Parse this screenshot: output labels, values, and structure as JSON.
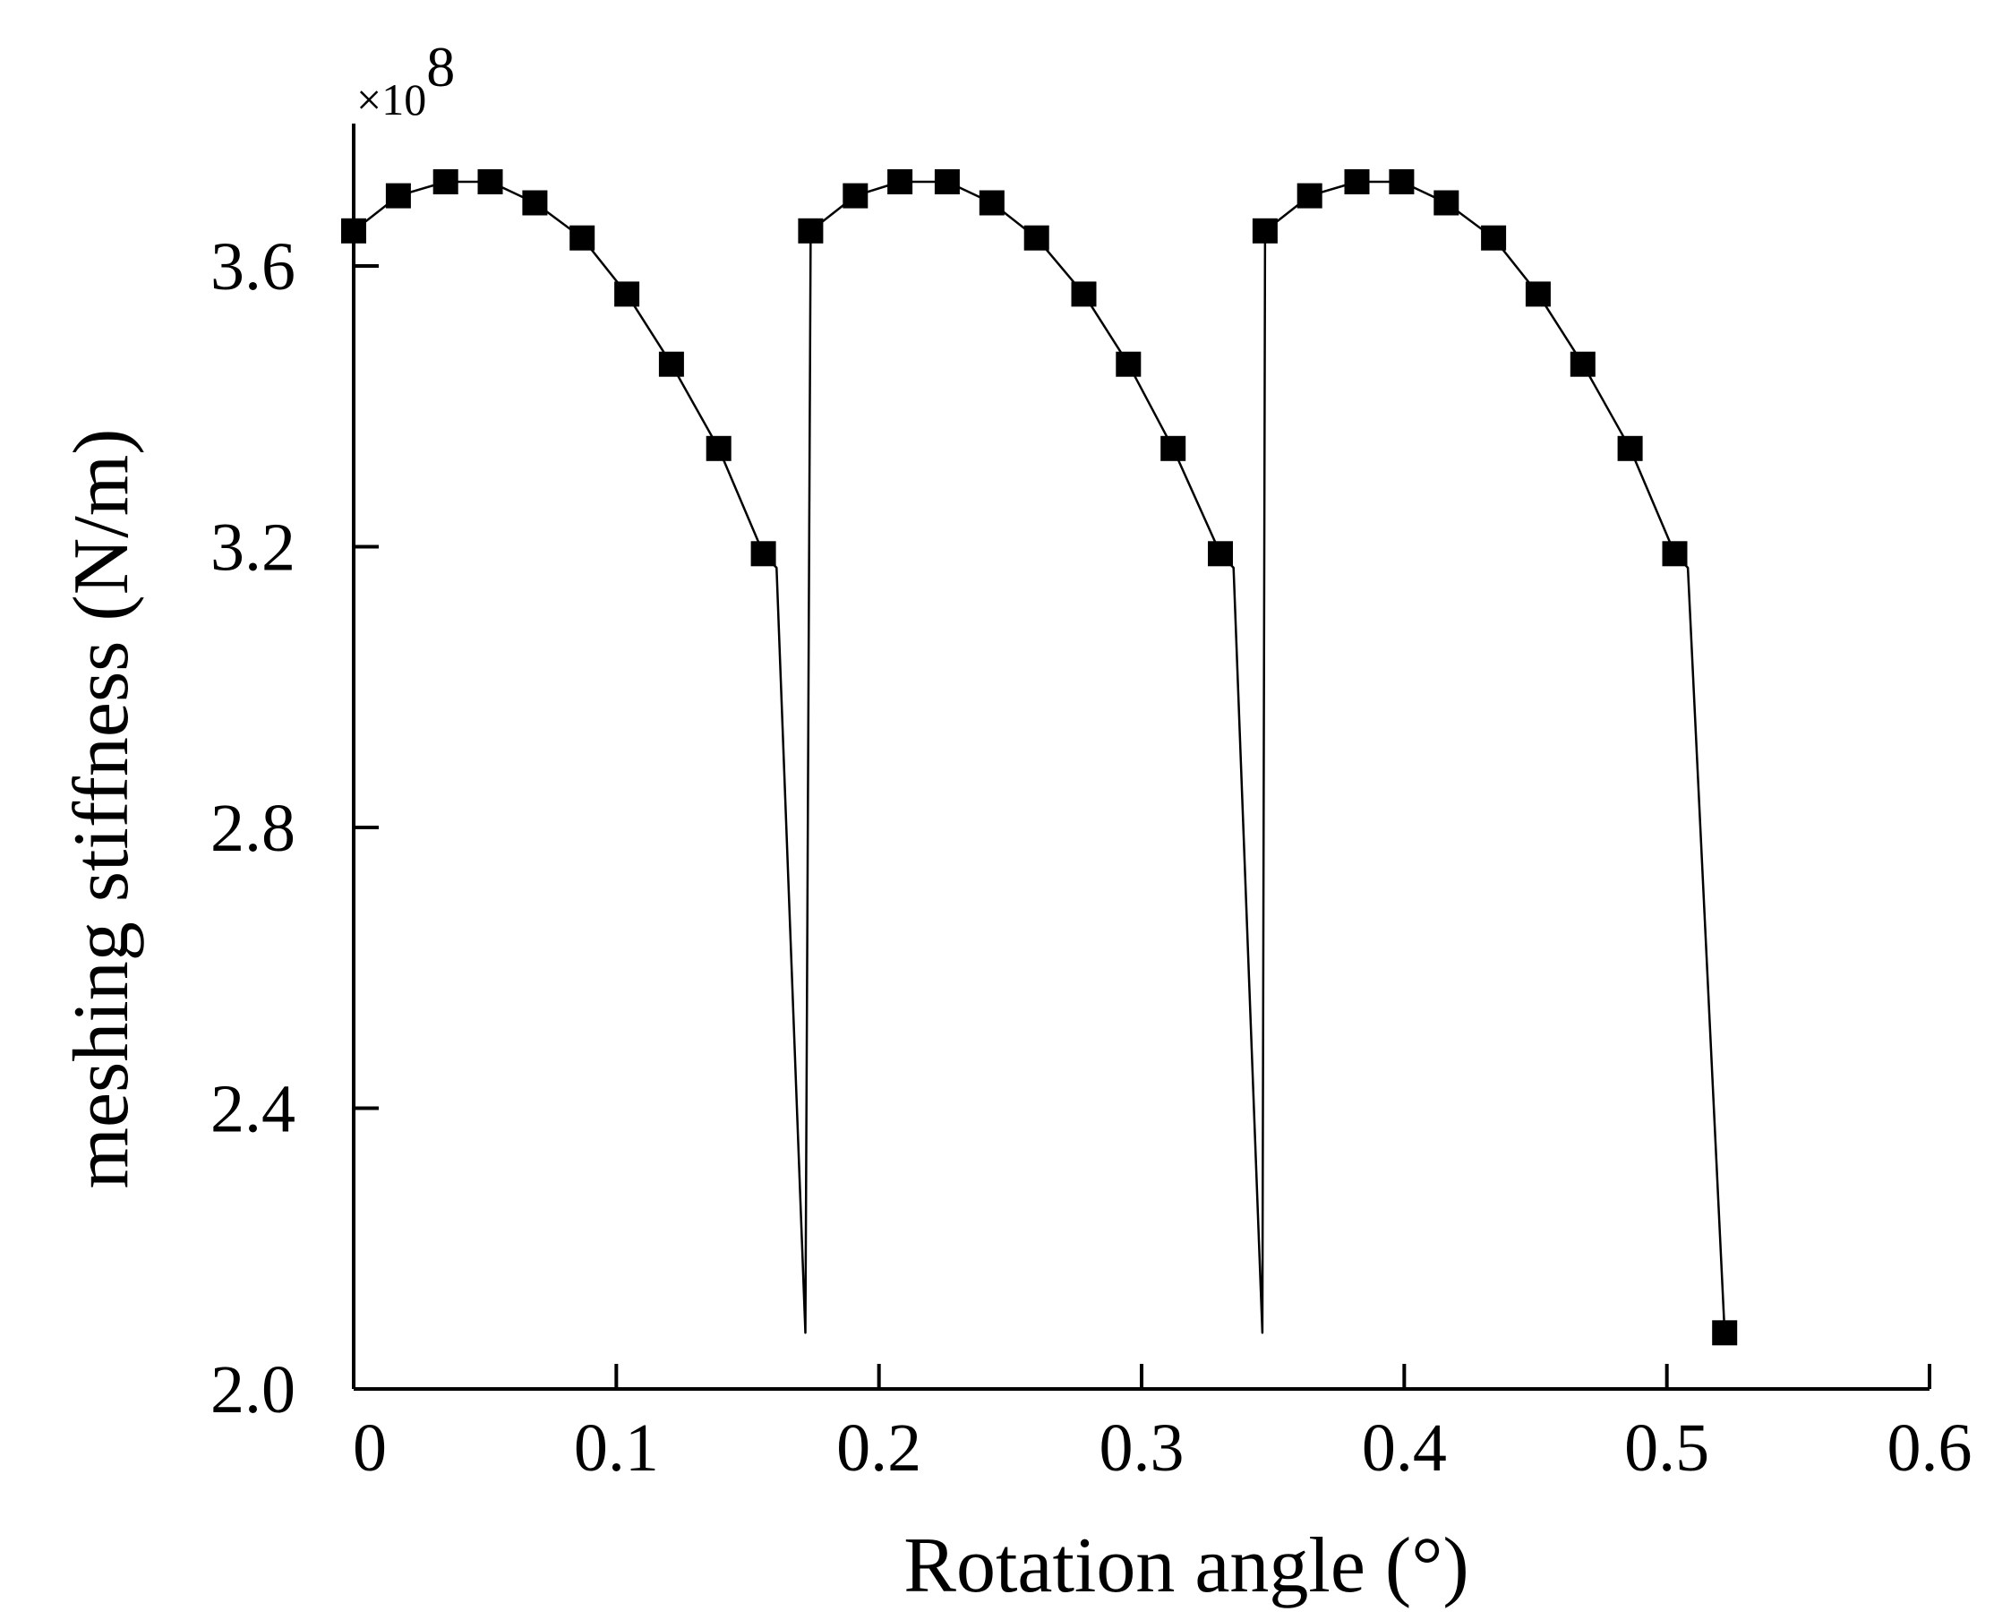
{
  "chart_data": {
    "type": "line",
    "title": "",
    "xlabel": "Rotation angle (°)",
    "ylabel": "meshing stiffness (N/m)",
    "y_multiplier": {
      "base": "×10",
      "exponent": "8"
    },
    "xlim": [
      0,
      0.6
    ],
    "ylim": [
      2.0,
      3.8
    ],
    "x_ticks": [
      0,
      0.1,
      0.2,
      0.3,
      0.4,
      0.5,
      0.6
    ],
    "x_tick_labels": [
      "0",
      "0.1",
      "0.2",
      "0.3",
      "0.4",
      "0.5",
      "0.6"
    ],
    "y_ticks": [
      2.0,
      2.4,
      2.8,
      3.2,
      3.6
    ],
    "y_tick_labels": [
      "2.0",
      "2.4",
      "2.8",
      "3.2",
      "3.6"
    ],
    "grid": false,
    "legend": "none",
    "colors": {
      "line": "#000000",
      "marker": "#000000"
    },
    "series": [
      {
        "marker": "square",
        "x": [
          0.0,
          0.017,
          0.035,
          0.052,
          0.069,
          0.087,
          0.104,
          0.121,
          0.139,
          0.156,
          0.161,
          0.172,
          0.174,
          0.191,
          0.208,
          0.226,
          0.243,
          0.26,
          0.278,
          0.295,
          0.312,
          0.33,
          0.335,
          0.346,
          0.347,
          0.364,
          0.382,
          0.399,
          0.416,
          0.434,
          0.451,
          0.468,
          0.486,
          0.503,
          0.508,
          0.522
        ],
        "y": [
          3.65,
          3.7,
          3.72,
          3.72,
          3.69,
          3.64,
          3.56,
          3.46,
          3.34,
          3.19,
          3.17,
          2.08,
          3.65,
          3.7,
          3.72,
          3.72,
          3.69,
          3.64,
          3.56,
          3.46,
          3.34,
          3.19,
          3.17,
          2.08,
          3.65,
          3.7,
          3.72,
          3.72,
          3.69,
          3.64,
          3.56,
          3.46,
          3.34,
          3.19,
          3.17,
          2.08
        ],
        "marker_x": [
          0.0,
          0.017,
          0.035,
          0.052,
          0.069,
          0.087,
          0.104,
          0.121,
          0.139,
          0.156,
          0.174,
          0.191,
          0.208,
          0.226,
          0.243,
          0.26,
          0.278,
          0.295,
          0.312,
          0.33,
          0.347,
          0.364,
          0.382,
          0.399,
          0.416,
          0.434,
          0.451,
          0.468,
          0.486,
          0.503,
          0.522
        ],
        "marker_y": [
          3.65,
          3.7,
          3.72,
          3.72,
          3.69,
          3.64,
          3.56,
          3.46,
          3.34,
          3.19,
          3.65,
          3.7,
          3.72,
          3.72,
          3.69,
          3.64,
          3.56,
          3.46,
          3.34,
          3.19,
          3.65,
          3.7,
          3.72,
          3.72,
          3.69,
          3.64,
          3.56,
          3.46,
          3.34,
          3.19,
          2.08
        ]
      }
    ]
  }
}
